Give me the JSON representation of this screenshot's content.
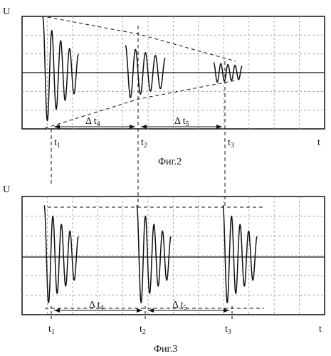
{
  "figure_1": {
    "caption": "Фиг.2",
    "y_axis_label": "U",
    "x_axis_label": "t",
    "time_marks": [
      {
        "base": "t",
        "sub": "1"
      },
      {
        "base": "t",
        "sub": "2"
      },
      {
        "base": "t",
        "sub": "3"
      }
    ],
    "intervals": [
      {
        "base": "Δ t",
        "sub": "4"
      },
      {
        "base": "Δ t",
        "sub": "5"
      }
    ]
  },
  "figure_2": {
    "caption": "Фиг.3",
    "y_axis_label": "U",
    "x_axis_label": "t",
    "time_marks": [
      {
        "base": "t",
        "sub": "1"
      },
      {
        "base": "t",
        "sub": "2"
      },
      {
        "base": "t",
        "sub": "3"
      }
    ],
    "intervals": [
      {
        "base": "Δ t",
        "sub": "4"
      },
      {
        "base": "Δ t",
        "sub": "5"
      }
    ]
  },
  "colors": {
    "ink": "#111111",
    "grid": "#999999",
    "background": "#ffffff"
  }
}
